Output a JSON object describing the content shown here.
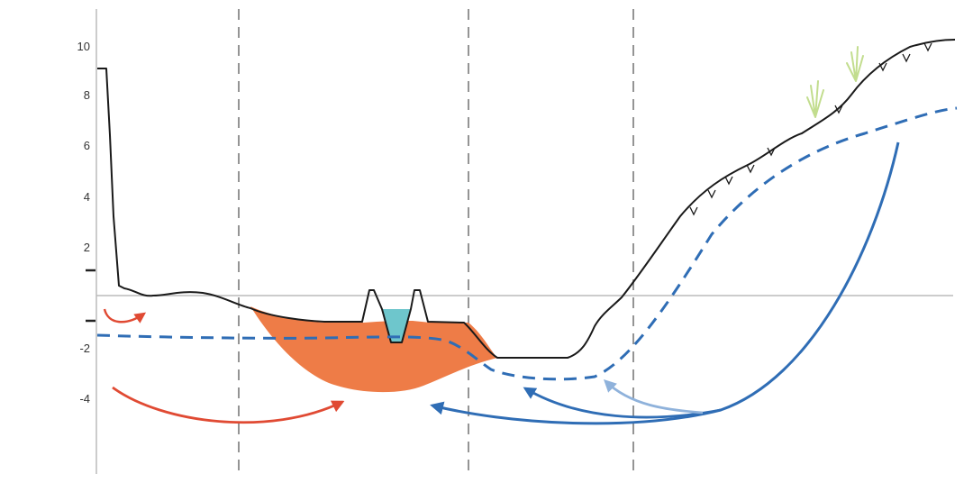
{
  "colors": {
    "terrain": "#1a1a1a",
    "axis": "#bbbbbb",
    "dashed_section": "#888888",
    "groundwater": "#2f6db5",
    "sediment": "#ee7c47",
    "water": "#6ec6cc",
    "red_arrow": "#e04a33",
    "blue_arrow": "#2f6db5",
    "light_blue_arrow": "#8fb2db",
    "grass": "#c2dd8e"
  },
  "y_axis": {
    "ticks": [
      {
        "value": 10,
        "label": "10"
      },
      {
        "value": 8,
        "label": "8"
      },
      {
        "value": 6,
        "label": "6"
      },
      {
        "value": 4,
        "label": "4"
      },
      {
        "value": 2,
        "label": "2"
      },
      {
        "value": -2,
        "label": "-2"
      },
      {
        "value": -4,
        "label": "-4"
      }
    ]
  },
  "icons": [
    "grass-icon",
    "arrow-icon"
  ]
}
